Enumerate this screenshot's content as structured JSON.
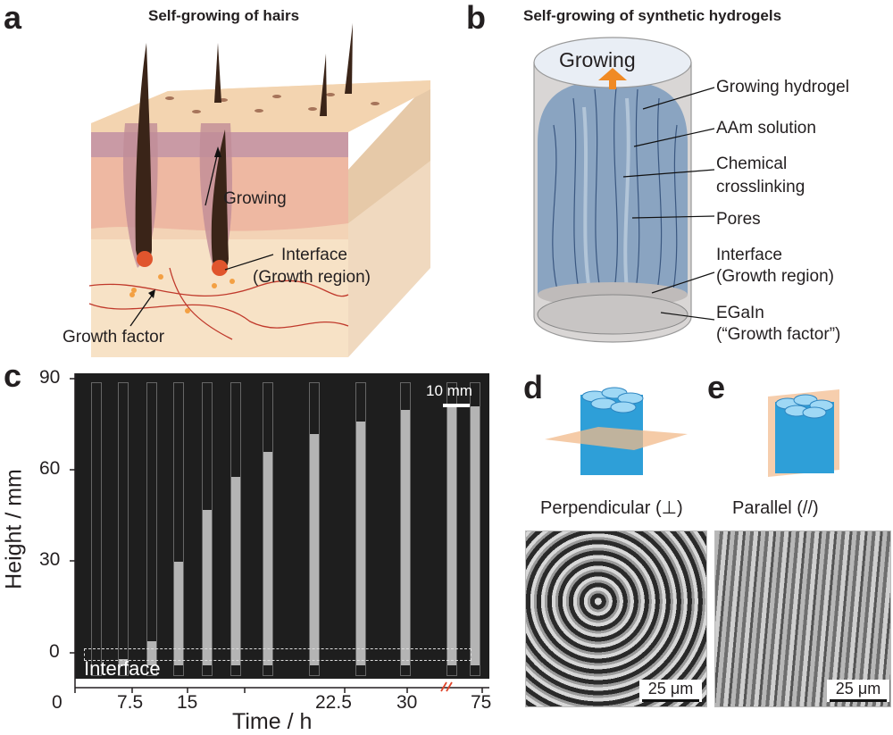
{
  "panel_a": {
    "label": "a",
    "title": "Self-growing of hairs",
    "growing": "Growing",
    "interface": "Interface",
    "growth_region": "(Growth region)",
    "growth_factor": "Growth factor"
  },
  "panel_b": {
    "label": "b",
    "title": "Self-growing of synthetic hydrogels",
    "top": "Growing",
    "labels": [
      "Growing hydrogel",
      "AAm solution",
      "Chemical",
      "crosslinking",
      "Pores",
      "Interface",
      "(Growth region)",
      "EGaIn",
      "(“Growth factor”)"
    ]
  },
  "panel_c": {
    "label": "c",
    "scale_label": "10 mm",
    "interface_label": "Interface",
    "ylabel": "Height / mm",
    "xlabel": "Time / h",
    "yticks": [
      "90",
      "60",
      "30",
      "0"
    ],
    "xticks": [
      "0",
      "7.5",
      "15",
      "22.5",
      "30",
      "75"
    ]
  },
  "panel_d": {
    "label": "d",
    "caption": "Perpendicular (⊥)",
    "scale": "25 μm"
  },
  "panel_e": {
    "label": "e",
    "caption": "Parallel (//)",
    "scale": "25 μm"
  },
  "chart_data": {
    "type": "bar",
    "categories": [
      "0",
      "2.5",
      "5",
      "7.5",
      "10",
      "12.5",
      "15",
      "17.5",
      "22.5",
      "27.5",
      "32.5",
      "75"
    ],
    "values": [
      0,
      2,
      8,
      34,
      51,
      62,
      70,
      76,
      80,
      84,
      85,
      85
    ],
    "ylabel": "Height / mm",
    "xlabel": "Time / h",
    "ylim": [
      0,
      90
    ]
  }
}
